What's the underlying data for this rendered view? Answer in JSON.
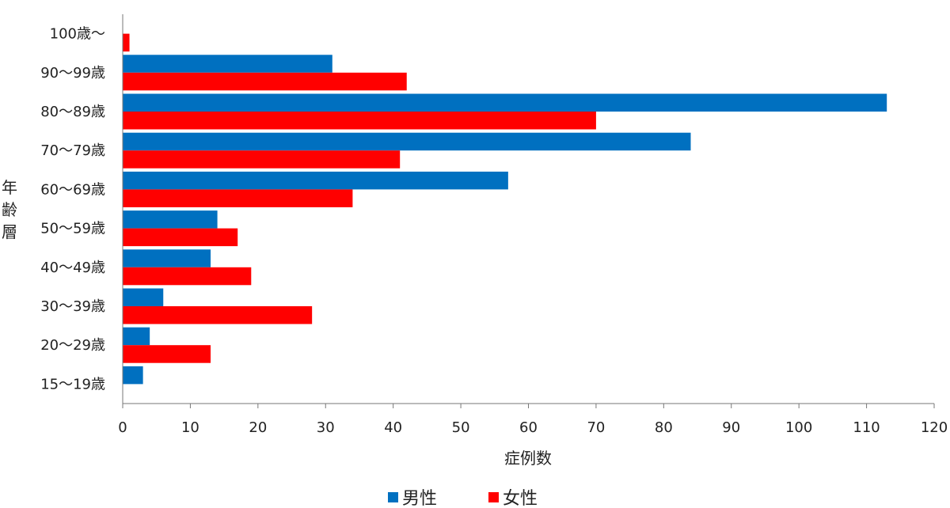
{
  "chart_data": {
    "type": "bar",
    "orientation": "horizontal",
    "categories": [
      "100歳～",
      "90～99歳",
      "80～89歳",
      "70～79歳",
      "60～69歳",
      "50～59歳",
      "40～49歳",
      "30～39歳",
      "20～29歳",
      "15～19歳"
    ],
    "series": [
      {
        "name": "男性",
        "color": "#0070c0",
        "values": [
          0,
          31,
          113,
          84,
          57,
          14,
          13,
          6,
          4,
          3
        ]
      },
      {
        "name": "女性",
        "color": "#ff0000",
        "values": [
          1,
          42,
          70,
          41,
          34,
          17,
          19,
          28,
          13,
          0
        ]
      }
    ],
    "xlabel": "症例数",
    "ylabel": "年齢層",
    "xlim": [
      0,
      120
    ],
    "xticks": [
      "0",
      "10",
      "20",
      "30",
      "40",
      "50",
      "60",
      "70",
      "80",
      "90",
      "100",
      "110",
      "120"
    ],
    "grid": false,
    "legend_position": "bottom"
  }
}
